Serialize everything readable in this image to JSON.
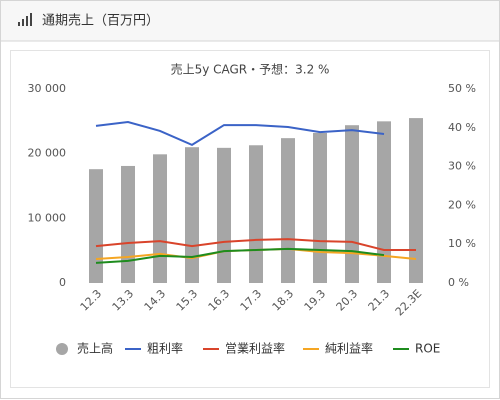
{
  "header": {
    "title": "通期売上（百万円）"
  },
  "chart_data": {
    "type": "combo",
    "title": "売上5y CAGR・予想：3.2 %",
    "categories": [
      "12.3",
      "13.3",
      "14.3",
      "15.3",
      "16.3",
      "17.3",
      "18.3",
      "19.3",
      "20.3",
      "21.3",
      "22.3E"
    ],
    "series": [
      {
        "name": "売上高",
        "type": "bar",
        "color": "#a6a6a6",
        "values": [
          17600,
          18100,
          19900,
          21000,
          20900,
          21300,
          22400,
          23200,
          24400,
          25000,
          25500
        ]
      },
      {
        "name": "粗利率",
        "type": "line",
        "axis": "y2",
        "color": "#3b63c7",
        "values": [
          40.5,
          41.5,
          39.2,
          35.6,
          40.7,
          40.7,
          40.2,
          38.9,
          39.4,
          38.4,
          null
        ]
      },
      {
        "name": "営業利益率",
        "type": "line",
        "axis": "y2",
        "color": "#d9442b",
        "values": [
          9.5,
          10.3,
          10.8,
          9.5,
          10.6,
          11.1,
          11.3,
          10.8,
          10.6,
          8.5,
          8.5
        ]
      },
      {
        "name": "純利益率",
        "type": "line",
        "axis": "y2",
        "color": "#f5a623",
        "values": [
          6.2,
          6.7,
          7.5,
          6.4,
          8.2,
          8.5,
          8.8,
          8.0,
          7.7,
          7.0,
          6.2
        ]
      },
      {
        "name": "ROE",
        "type": "line",
        "axis": "y2",
        "color": "#1e8c1e",
        "values": [
          5.2,
          5.7,
          7.0,
          6.7,
          8.2,
          8.5,
          8.8,
          8.5,
          8.2,
          7.2,
          null
        ]
      }
    ],
    "ylim": [
      0,
      30000
    ],
    "yticks": [
      {
        "value": 0,
        "label": "0"
      },
      {
        "value": 10000,
        "label": "10 000"
      },
      {
        "value": 20000,
        "label": "20 000"
      },
      {
        "value": 30000,
        "label": "30 000"
      }
    ],
    "y2lim": [
      0,
      50
    ],
    "y2ticks": [
      {
        "value": 0,
        "label": "0 %"
      },
      {
        "value": 10,
        "label": "10 %"
      },
      {
        "value": 20,
        "label": "20 %"
      },
      {
        "value": 30,
        "label": "30 %"
      },
      {
        "value": 40,
        "label": "40 %"
      },
      {
        "value": 50,
        "label": "50 %"
      }
    ],
    "grid": false,
    "legend": "bottom"
  }
}
